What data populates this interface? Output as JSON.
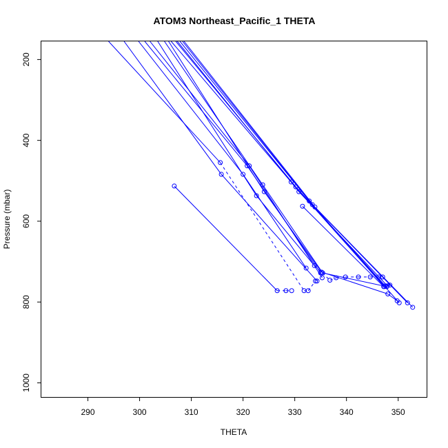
{
  "chart_data": {
    "type": "line",
    "title": "ATOM3 Northeast_Pacific_1 THETA",
    "xlabel": "THETA",
    "ylabel": "Pressure (mbar)",
    "xlim": [
      281,
      355.5
    ],
    "ylim": [
      1035,
      155
    ],
    "y_reversed": true,
    "x_ticks": [
      290,
      300,
      310,
      320,
      330,
      340,
      350
    ],
    "y_ticks": [
      200,
      400,
      600,
      800,
      1000
    ],
    "grid": false,
    "legend": "none",
    "color": "#0000ff",
    "series": [
      {
        "x": [
          306.7,
          326.6,
          328.3,
          329.4
        ],
        "y": [
          513,
          772,
          772,
          772
        ],
        "markers": [
          true,
          true,
          true,
          true
        ],
        "dashed_from_index": 2
      },
      {
        "x": [
          294.0,
          315.6,
          331.8,
          332.6,
          334.0
        ],
        "y": [
          155,
          455,
          772,
          772,
          748
        ],
        "markers": [
          false,
          true,
          true,
          true,
          true
        ],
        "dashed_from_index": 2
      },
      {
        "x": [
          297.0,
          315.8,
          334.3
        ],
        "y": [
          155,
          484,
          748
        ],
        "markers": [
          false,
          true,
          true
        ]
      },
      {
        "x": [
          299.8,
          320.0,
          332.2
        ],
        "y": [
          155,
          484,
          716
        ],
        "markers": [
          false,
          true,
          true
        ]
      },
      {
        "x": [
          301.0,
          320.8,
          335.0
        ],
        "y": [
          155,
          463,
          728
        ],
        "markers": [
          false,
          true,
          true
        ]
      },
      {
        "x": [
          302.0,
          321.2,
          335.3
        ],
        "y": [
          155,
          463,
          740
        ],
        "markers": [
          false,
          true,
          true
        ]
      },
      {
        "x": [
          303.5,
          322.6,
          333.8,
          336.8,
          338.0,
          339.8,
          342.3,
          344.6,
          346.2,
          347.0
        ],
        "y": [
          155,
          537,
          710,
          746,
          740,
          738,
          738,
          738,
          738,
          738
        ],
        "markers": [
          false,
          true,
          true,
          true,
          true,
          true,
          true,
          true,
          true,
          true
        ],
        "dashed_from_index": 3
      },
      {
        "x": [
          304.8,
          323.8,
          335.4,
          347.8,
          348.4
        ],
        "y": [
          155,
          510,
          728,
          762,
          758
        ],
        "markers": [
          false,
          true,
          true,
          true,
          true
        ]
      },
      {
        "x": [
          305.6,
          324.1,
          335.2,
          348.0,
          349.8
        ],
        "y": [
          155,
          527,
          726,
          780,
          797
        ],
        "markers": [
          false,
          true,
          true,
          true,
          true
        ]
      },
      {
        "x": [
          306.1,
          329.3,
          347.3
        ],
        "y": [
          155,
          503,
          762
        ],
        "markers": [
          false,
          true,
          true
        ]
      },
      {
        "x": [
          307.0,
          330.2,
          347.5
        ],
        "y": [
          155,
          515,
          760
        ],
        "markers": [
          false,
          true,
          true
        ]
      },
      {
        "x": [
          307.3,
          330.8,
          347.9
        ],
        "y": [
          155,
          527,
          760
        ],
        "markers": [
          false,
          true,
          true
        ]
      },
      {
        "x": [
          307.8,
          332.8,
          350.2
        ],
        "y": [
          155,
          550,
          802
        ],
        "markers": [
          false,
          true,
          true
        ]
      },
      {
        "x": [
          308.3,
          333.4,
          351.8
        ],
        "y": [
          155,
          559,
          802
        ],
        "markers": [
          false,
          true,
          true
        ]
      },
      {
        "x": [
          308.6,
          333.9,
          352.8
        ],
        "y": [
          155,
          565,
          813
        ],
        "markers": [
          false,
          true,
          true
        ]
      },
      {
        "x": [
          331.5,
          347.2
        ],
        "y": [
          563,
          762
        ],
        "markers": [
          true,
          true
        ]
      }
    ]
  }
}
